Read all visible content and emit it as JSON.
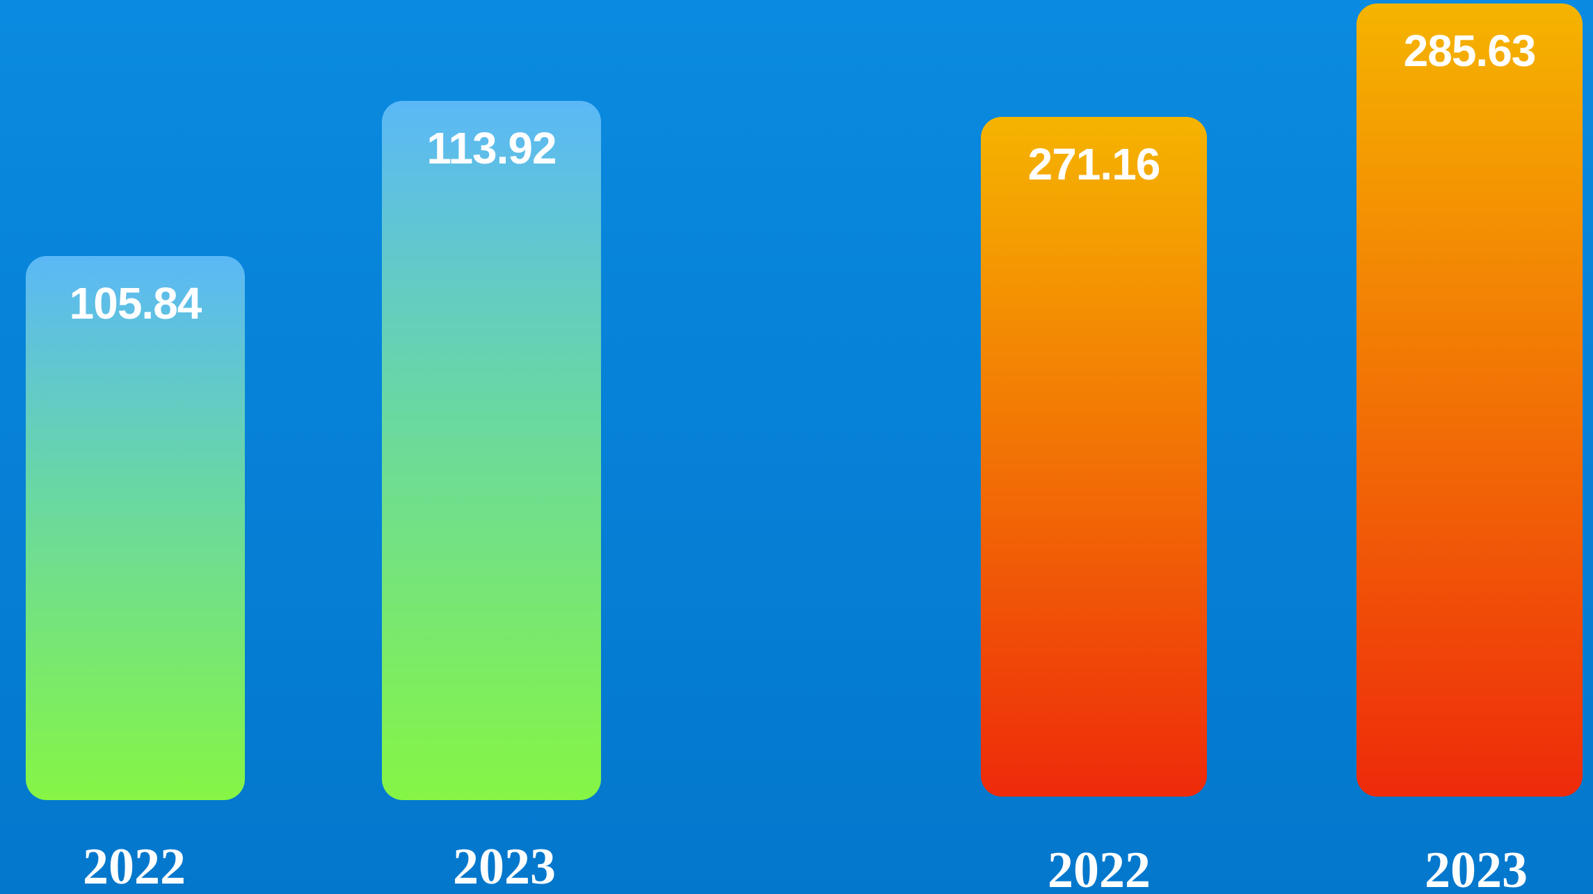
{
  "chart_data": [
    {
      "type": "bar",
      "categories": [
        "2022",
        "2023"
      ],
      "values": [
        105.84,
        113.92
      ],
      "colors": [
        "#5bb8f7",
        "#86f544"
      ]
    },
    {
      "type": "bar",
      "categories": [
        "2022",
        "2023"
      ],
      "values": [
        271.16,
        285.63
      ],
      "colors": [
        "#f5b400",
        "#ee2a0a"
      ]
    }
  ]
}
